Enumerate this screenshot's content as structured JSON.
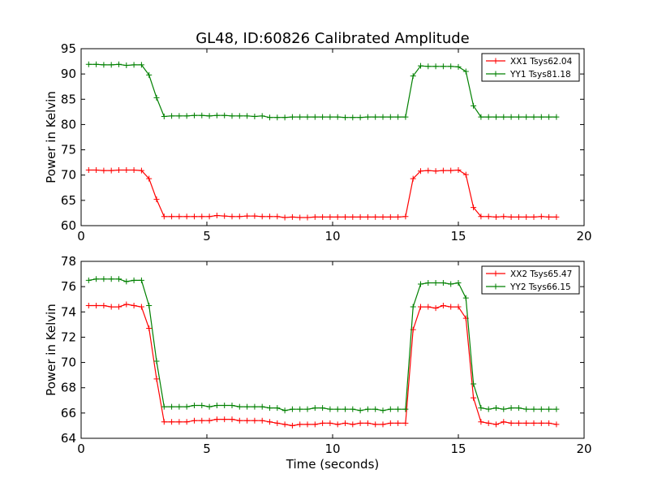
{
  "figure_title": "GL48, ID:60826 Calibrated Amplitude",
  "chart_data": [
    {
      "type": "line",
      "title": "GL48, ID:60826 Calibrated Amplitude",
      "xlabel": "",
      "ylabel": "Power in Kelvin",
      "xlim": [
        0,
        20
      ],
      "ylim": [
        60,
        95
      ],
      "xticks": [
        0,
        5,
        10,
        15,
        20
      ],
      "yticks": [
        60,
        65,
        70,
        75,
        80,
        85,
        90,
        95
      ],
      "legend_position": "top-right",
      "grid": false,
      "x": [
        0.3,
        0.6,
        0.9,
        1.2,
        1.5,
        1.8,
        2.1,
        2.4,
        2.7,
        3.0,
        3.3,
        3.6,
        3.9,
        4.2,
        4.5,
        4.8,
        5.1,
        5.4,
        5.7,
        6.0,
        6.3,
        6.6,
        6.9,
        7.2,
        7.5,
        7.8,
        8.1,
        8.4,
        8.7,
        9.0,
        9.3,
        9.6,
        9.9,
        10.2,
        10.5,
        10.8,
        11.1,
        11.4,
        11.7,
        12.0,
        12.3,
        12.6,
        12.9,
        13.2,
        13.5,
        13.8,
        14.1,
        14.4,
        14.7,
        15.0,
        15.3,
        15.6,
        15.9,
        16.2,
        16.5,
        16.8,
        17.1,
        17.4,
        17.7,
        18.0,
        18.3,
        18.6,
        18.9
      ],
      "series": [
        {
          "name": "XX1 Tsys62.04",
          "color": "#ff0000",
          "values": [
            71.0,
            71.0,
            70.9,
            70.9,
            71.0,
            71.0,
            71.0,
            70.9,
            69.3,
            65.2,
            61.8,
            61.8,
            61.8,
            61.8,
            61.8,
            61.8,
            61.8,
            62.0,
            61.9,
            61.8,
            61.8,
            61.9,
            61.9,
            61.8,
            61.8,
            61.8,
            61.6,
            61.7,
            61.6,
            61.6,
            61.7,
            61.7,
            61.7,
            61.7,
            61.7,
            61.7,
            61.7,
            61.7,
            61.7,
            61.7,
            61.7,
            61.7,
            61.8,
            69.3,
            70.8,
            70.9,
            70.8,
            70.9,
            70.9,
            71.0,
            70.1,
            63.6,
            61.8,
            61.8,
            61.7,
            61.8,
            61.7,
            61.7,
            61.7,
            61.7,
            61.8,
            61.7,
            61.7
          ]
        },
        {
          "name": "YY1 Tsys81.18",
          "color": "#008000",
          "values": [
            91.9,
            91.9,
            91.8,
            91.8,
            91.9,
            91.7,
            91.8,
            91.8,
            89.8,
            85.3,
            81.6,
            81.7,
            81.7,
            81.7,
            81.8,
            81.8,
            81.7,
            81.8,
            81.8,
            81.7,
            81.7,
            81.7,
            81.6,
            81.7,
            81.4,
            81.4,
            81.4,
            81.5,
            81.5,
            81.5,
            81.5,
            81.5,
            81.5,
            81.5,
            81.4,
            81.4,
            81.4,
            81.5,
            81.5,
            81.5,
            81.5,
            81.5,
            81.5,
            89.6,
            91.6,
            91.5,
            91.5,
            91.5,
            91.5,
            91.4,
            90.5,
            83.7,
            81.5,
            81.5,
            81.5,
            81.5,
            81.5,
            81.5,
            81.5,
            81.5,
            81.5,
            81.5,
            81.5
          ]
        }
      ]
    },
    {
      "type": "line",
      "title": "",
      "xlabel": "Time (seconds)",
      "ylabel": "Power in Kelvin",
      "xlim": [
        0,
        20
      ],
      "ylim": [
        64,
        78
      ],
      "xticks": [
        0,
        5,
        10,
        15,
        20
      ],
      "yticks": [
        64,
        66,
        68,
        70,
        72,
        74,
        76,
        78
      ],
      "legend_position": "top-right",
      "grid": false,
      "x": [
        0.3,
        0.6,
        0.9,
        1.2,
        1.5,
        1.8,
        2.1,
        2.4,
        2.7,
        3.0,
        3.3,
        3.6,
        3.9,
        4.2,
        4.5,
        4.8,
        5.1,
        5.4,
        5.7,
        6.0,
        6.3,
        6.6,
        6.9,
        7.2,
        7.5,
        7.8,
        8.1,
        8.4,
        8.7,
        9.0,
        9.3,
        9.6,
        9.9,
        10.2,
        10.5,
        10.8,
        11.1,
        11.4,
        11.7,
        12.0,
        12.3,
        12.6,
        12.9,
        13.2,
        13.5,
        13.8,
        14.1,
        14.4,
        14.7,
        15.0,
        15.3,
        15.6,
        15.9,
        16.2,
        16.5,
        16.8,
        17.1,
        17.4,
        17.7,
        18.0,
        18.3,
        18.6,
        18.9
      ],
      "series": [
        {
          "name": "XX2 Tsys65.47",
          "color": "#ff0000",
          "values": [
            74.5,
            74.5,
            74.5,
            74.4,
            74.4,
            74.6,
            74.5,
            74.4,
            72.7,
            68.7,
            65.3,
            65.3,
            65.3,
            65.3,
            65.4,
            65.4,
            65.4,
            65.5,
            65.5,
            65.5,
            65.4,
            65.4,
            65.4,
            65.4,
            65.3,
            65.2,
            65.1,
            65.0,
            65.1,
            65.1,
            65.1,
            65.2,
            65.2,
            65.1,
            65.2,
            65.1,
            65.2,
            65.2,
            65.1,
            65.1,
            65.2,
            65.2,
            65.2,
            72.6,
            74.4,
            74.4,
            74.3,
            74.5,
            74.4,
            74.4,
            73.5,
            67.2,
            65.3,
            65.2,
            65.1,
            65.3,
            65.2,
            65.2,
            65.2,
            65.2,
            65.2,
            65.2,
            65.1
          ]
        },
        {
          "name": "YY2 Tsys66.15",
          "color": "#008000",
          "values": [
            76.5,
            76.6,
            76.6,
            76.6,
            76.6,
            76.4,
            76.5,
            76.5,
            74.5,
            70.1,
            66.5,
            66.5,
            66.5,
            66.5,
            66.6,
            66.6,
            66.5,
            66.6,
            66.6,
            66.6,
            66.5,
            66.5,
            66.5,
            66.5,
            66.4,
            66.4,
            66.2,
            66.3,
            66.3,
            66.3,
            66.4,
            66.4,
            66.3,
            66.3,
            66.3,
            66.3,
            66.2,
            66.3,
            66.3,
            66.2,
            66.3,
            66.3,
            66.3,
            74.4,
            76.2,
            76.3,
            76.3,
            76.3,
            76.2,
            76.3,
            75.1,
            68.3,
            66.4,
            66.3,
            66.4,
            66.3,
            66.4,
            66.4,
            66.3,
            66.3,
            66.3,
            66.3,
            66.3
          ]
        }
      ]
    }
  ]
}
